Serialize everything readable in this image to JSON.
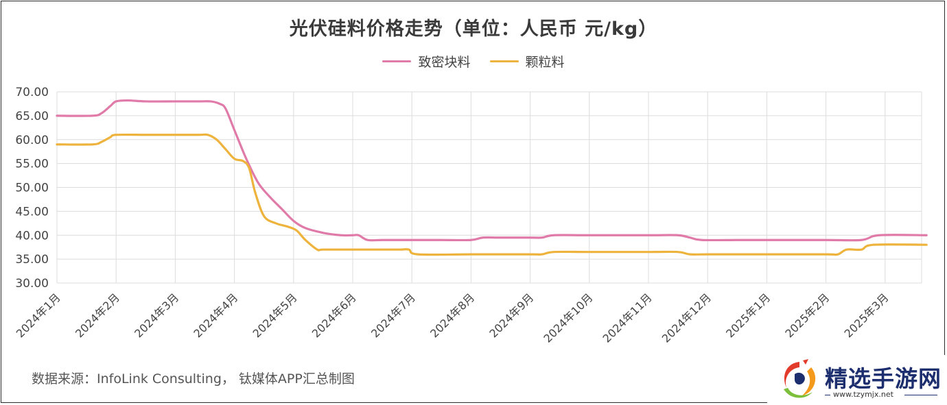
{
  "chart_data": {
    "type": "line",
    "title": "光伏硅料价格走势（单位：人民币 元/kg）",
    "x": [
      "2024年1月",
      "2024年2月",
      "2024年3月",
      "2024年4月",
      "2024年5月",
      "2024年6月",
      "2024年7月",
      "2024年8月",
      "2024年9月",
      "2024年10月",
      "2024年11月",
      "2024年12月",
      "2025年1月",
      "2025年2月",
      "2025年3月"
    ],
    "ylim": [
      30,
      70
    ],
    "yticks": [
      "30.00",
      "35.00",
      "40.00",
      "45.00",
      "50.00",
      "55.00",
      "60.00",
      "65.00",
      "70.00"
    ],
    "grid": true,
    "legend_position": "top-center",
    "series": [
      {
        "name": "致密块料",
        "color": "#e07aa8",
        "points": [
          [
            0,
            65
          ],
          [
            0.6,
            65
          ],
          [
            0.75,
            65.5
          ],
          [
            0.9,
            67
          ],
          [
            1.0,
            68
          ],
          [
            1.2,
            68.2
          ],
          [
            1.5,
            68
          ],
          [
            2.0,
            68
          ],
          [
            2.4,
            68
          ],
          [
            2.6,
            68
          ],
          [
            2.75,
            67.5
          ],
          [
            2.85,
            66.5
          ],
          [
            3.0,
            62
          ],
          [
            3.2,
            56
          ],
          [
            3.4,
            51
          ],
          [
            3.6,
            48
          ],
          [
            3.8,
            45.5
          ],
          [
            4.0,
            43
          ],
          [
            4.2,
            41.5
          ],
          [
            4.5,
            40.5
          ],
          [
            4.8,
            40
          ],
          [
            5.0,
            40
          ],
          [
            5.1,
            40
          ],
          [
            5.25,
            39
          ],
          [
            5.5,
            39
          ],
          [
            6.0,
            39
          ],
          [
            6.5,
            39
          ],
          [
            7.0,
            39
          ],
          [
            7.2,
            39.5
          ],
          [
            7.5,
            39.5
          ],
          [
            8.0,
            39.5
          ],
          [
            8.2,
            39.5
          ],
          [
            8.4,
            40
          ],
          [
            9.0,
            40
          ],
          [
            10.0,
            40
          ],
          [
            10.5,
            40
          ],
          [
            10.7,
            39.5
          ],
          [
            10.9,
            39
          ],
          [
            11.5,
            39
          ],
          [
            12.0,
            39
          ],
          [
            13.0,
            39
          ],
          [
            13.6,
            39
          ],
          [
            13.9,
            40
          ],
          [
            14.7,
            40
          ]
        ]
      },
      {
        "name": "颗粒料",
        "color": "#eeb33d",
        "points": [
          [
            0,
            59
          ],
          [
            0.6,
            59
          ],
          [
            0.75,
            59.5
          ],
          [
            0.9,
            60.5
          ],
          [
            1.0,
            61
          ],
          [
            1.5,
            61
          ],
          [
            2.0,
            61
          ],
          [
            2.4,
            61
          ],
          [
            2.55,
            61
          ],
          [
            2.7,
            60
          ],
          [
            2.85,
            58
          ],
          [
            3.0,
            56
          ],
          [
            3.15,
            55.5
          ],
          [
            3.25,
            54
          ],
          [
            3.35,
            49
          ],
          [
            3.5,
            44
          ],
          [
            3.7,
            42.5
          ],
          [
            3.9,
            41.8
          ],
          [
            4.05,
            41
          ],
          [
            4.2,
            39
          ],
          [
            4.4,
            37
          ],
          [
            4.5,
            37
          ],
          [
            5.0,
            37
          ],
          [
            5.5,
            37
          ],
          [
            5.8,
            37
          ],
          [
            5.95,
            37
          ],
          [
            6.1,
            36
          ],
          [
            7.0,
            36
          ],
          [
            8.0,
            36
          ],
          [
            8.2,
            36
          ],
          [
            8.4,
            36.5
          ],
          [
            9.0,
            36.5
          ],
          [
            10.0,
            36.5
          ],
          [
            10.5,
            36.5
          ],
          [
            10.7,
            36
          ],
          [
            11.0,
            36
          ],
          [
            12.0,
            36
          ],
          [
            13.0,
            36
          ],
          [
            13.2,
            36
          ],
          [
            13.35,
            37
          ],
          [
            13.6,
            37
          ],
          [
            13.8,
            38
          ],
          [
            14.7,
            38
          ]
        ]
      }
    ]
  },
  "source_text": "数据来源：InfoLink Consulting， 钛媒体APP汇总制图",
  "watermark": {
    "name": "精选手游网",
    "url": "www.tzymjx.net",
    "colors": {
      "text": "#1d2e6e",
      "red": "#e23b2c",
      "orange": "#f39a1c",
      "green": "#7cbf3a"
    }
  }
}
